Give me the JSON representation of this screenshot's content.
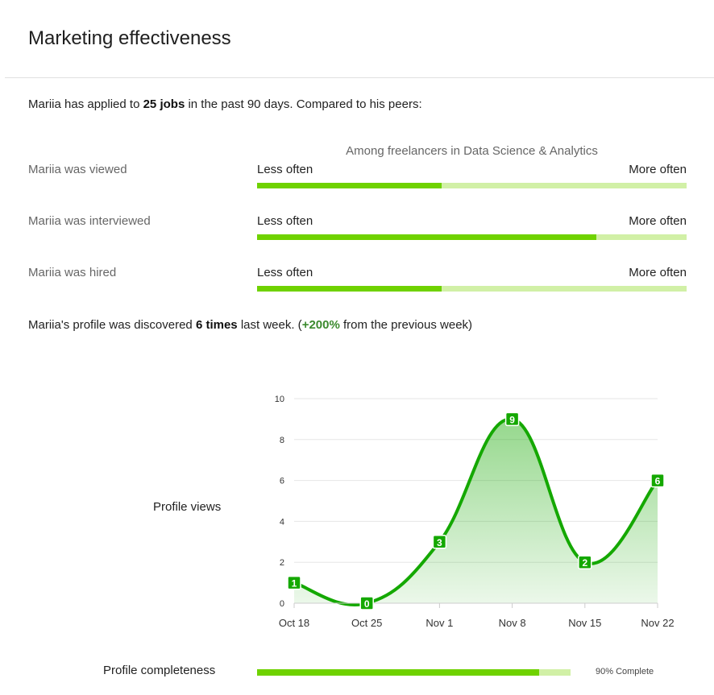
{
  "header": {
    "title": "Marketing effectiveness"
  },
  "summary": {
    "prefix": "Mariia has applied to ",
    "jobs": "25 jobs",
    "suffix": " in the past 90 days. Compared to his peers:"
  },
  "peers": {
    "among_label": "Among freelancers in Data Science & Analytics",
    "less_label": "Less often",
    "more_label": "More often",
    "rows": [
      {
        "label": "Mariia was viewed",
        "fraction": 0.43
      },
      {
        "label": "Mariia was interviewed",
        "fraction": 0.79
      },
      {
        "label": "Mariia was hired",
        "fraction": 0.43
      }
    ]
  },
  "discovered": {
    "prefix": "Mariia's profile was discovered ",
    "count": "6 times",
    "middle": " last week. (",
    "change": "+200%",
    "suffix": " from the previous week)"
  },
  "chart_label": "Profile views",
  "chart_data": {
    "type": "area",
    "categories": [
      "Oct 18",
      "Oct 25",
      "Nov 1",
      "Nov 8",
      "Nov 15",
      "Nov 22"
    ],
    "values": [
      1,
      0,
      3,
      9,
      2,
      6
    ],
    "data_labels": [
      "1",
      "0",
      "3",
      "9",
      "2",
      "6"
    ],
    "y_ticks": [
      "0",
      "2",
      "4",
      "6",
      "8",
      "10"
    ],
    "ylim": [
      0,
      10
    ],
    "grid": true,
    "line_color": "#14a800",
    "fill_color": "#14a800"
  },
  "completeness": {
    "label": "Profile completeness",
    "value": 0.9,
    "text": "90% Complete"
  },
  "colors": {
    "bar_fill": "#6fd200",
    "bar_track": "#d1f0a6",
    "positive_text": "#3b8a2e"
  }
}
